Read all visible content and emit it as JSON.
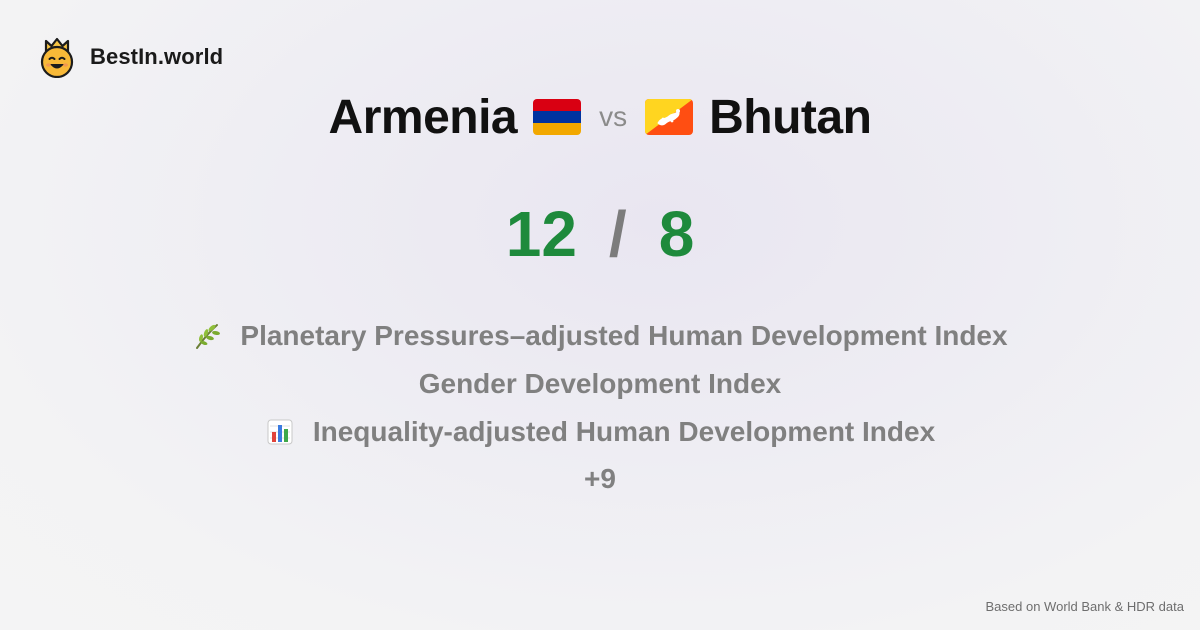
{
  "brand": {
    "name": "BestIn.world",
    "logo_icon": "crown-smiley-icon"
  },
  "comparison": {
    "left_country": "Armenia",
    "left_flag": "armenia-flag-icon",
    "vs_label": "vs",
    "right_country": "Bhutan",
    "right_flag": "bhutan-flag-icon"
  },
  "scores": {
    "left": "12",
    "separator": "/",
    "right": "8",
    "color": "#1e8a3c"
  },
  "metrics": [
    {
      "icon": "herb-icon",
      "label": "Planetary Pressures–adjusted Human Development Index"
    },
    {
      "icon": "",
      "label": "Gender Development Index"
    },
    {
      "icon": "bar-chart-icon",
      "label": "Inequality-adjusted Human Development Index"
    }
  ],
  "more_count": "+9",
  "footer": {
    "source": "Based on World Bank & HDR data"
  }
}
